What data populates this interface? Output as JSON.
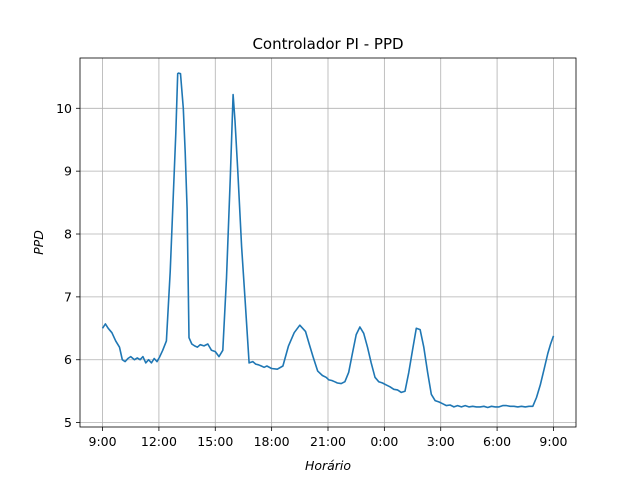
{
  "chart_data": {
    "type": "line",
    "title": "Controlador PI - PPD",
    "xlabel": "Horário",
    "ylabel": "PPD",
    "x_ticks": [
      "9:00",
      "12:00",
      "15:00",
      "18:00",
      "21:00",
      "0:00",
      "3:00",
      "6:00",
      "9:00"
    ],
    "x_tick_hours": [
      0,
      3,
      6,
      9,
      12,
      15,
      18,
      21,
      24
    ],
    "xlim": [
      -1.2,
      25.2
    ],
    "y_ticks": [
      5,
      6,
      7,
      8,
      9,
      10
    ],
    "ylim": [
      4.93,
      10.8
    ],
    "grid": true,
    "legend": "none",
    "series": [
      {
        "color": "#1f77b4",
        "hours_from_9am": [
          0,
          0.15,
          0.3,
          0.5,
          0.7,
          0.9,
          1.05,
          1.2,
          1.35,
          1.5,
          1.7,
          1.85,
          2.0,
          2.15,
          2.3,
          2.45,
          2.6,
          2.75,
          2.9,
          3.05,
          3.2,
          3.4,
          3.6,
          3.75,
          3.9,
          4.0,
          4.05,
          4.15,
          4.3,
          4.4,
          4.5,
          4.6,
          4.75,
          4.9,
          5.05,
          5.2,
          5.4,
          5.6,
          5.8,
          6.0,
          6.2,
          6.4,
          6.6,
          6.8,
          6.95,
          7.05,
          7.2,
          7.4,
          7.6,
          7.8,
          8.0,
          8.15,
          8.3,
          8.45,
          8.6,
          8.75,
          9.0,
          9.3,
          9.6,
          9.9,
          10.2,
          10.5,
          10.8,
          11.0,
          11.2,
          11.45,
          11.7,
          11.9,
          12.05,
          12.2,
          12.35,
          12.5,
          12.7,
          12.9,
          13.1,
          13.3,
          13.5,
          13.7,
          13.9,
          14.1,
          14.3,
          14.5,
          14.7,
          14.9,
          15.1,
          15.3,
          15.5,
          15.7,
          15.9,
          16.1,
          16.3,
          16.5,
          16.7,
          16.9,
          17.1,
          17.3,
          17.5,
          17.7,
          17.9,
          18.1,
          18.3,
          18.5,
          18.7,
          18.9,
          19.1,
          19.3,
          19.5,
          19.7,
          19.9,
          20.1,
          20.3,
          20.5,
          20.7,
          20.9,
          21.1,
          21.3,
          21.5,
          21.7,
          21.9,
          22.1,
          22.3,
          22.5,
          22.7,
          22.9,
          23.1,
          23.3,
          23.5,
          23.7,
          23.85,
          24.0
        ],
        "values": [
          6.5,
          6.57,
          6.5,
          6.43,
          6.3,
          6.2,
          6.0,
          5.97,
          6.02,
          6.05,
          6.0,
          6.03,
          6.0,
          6.05,
          5.95,
          6.0,
          5.95,
          6.02,
          5.97,
          6.05,
          6.15,
          6.3,
          7.4,
          8.5,
          9.6,
          10.55,
          10.56,
          10.55,
          10.0,
          9.3,
          8.4,
          6.35,
          6.25,
          6.22,
          6.2,
          6.24,
          6.22,
          6.25,
          6.15,
          6.13,
          6.05,
          6.15,
          7.3,
          8.9,
          10.22,
          9.8,
          9.0,
          7.8,
          6.9,
          5.95,
          5.97,
          5.93,
          5.92,
          5.9,
          5.88,
          5.9,
          5.86,
          5.85,
          5.9,
          6.22,
          6.43,
          6.55,
          6.45,
          6.25,
          6.05,
          5.82,
          5.75,
          5.72,
          5.68,
          5.67,
          5.65,
          5.63,
          5.62,
          5.65,
          5.8,
          6.1,
          6.4,
          6.52,
          6.42,
          6.2,
          5.95,
          5.72,
          5.65,
          5.63,
          5.6,
          5.57,
          5.53,
          5.52,
          5.48,
          5.5,
          5.8,
          6.15,
          6.5,
          6.48,
          6.2,
          5.8,
          5.45,
          5.35,
          5.33,
          5.3,
          5.27,
          5.28,
          5.25,
          5.27,
          5.25,
          5.27,
          5.25,
          5.26,
          5.25,
          5.25,
          5.26,
          5.24,
          5.26,
          5.25,
          5.25,
          5.27,
          5.27,
          5.26,
          5.26,
          5.25,
          5.26,
          5.25,
          5.26,
          5.26,
          5.4,
          5.6,
          5.85,
          6.1,
          6.25,
          6.38
        ]
      }
    ]
  }
}
